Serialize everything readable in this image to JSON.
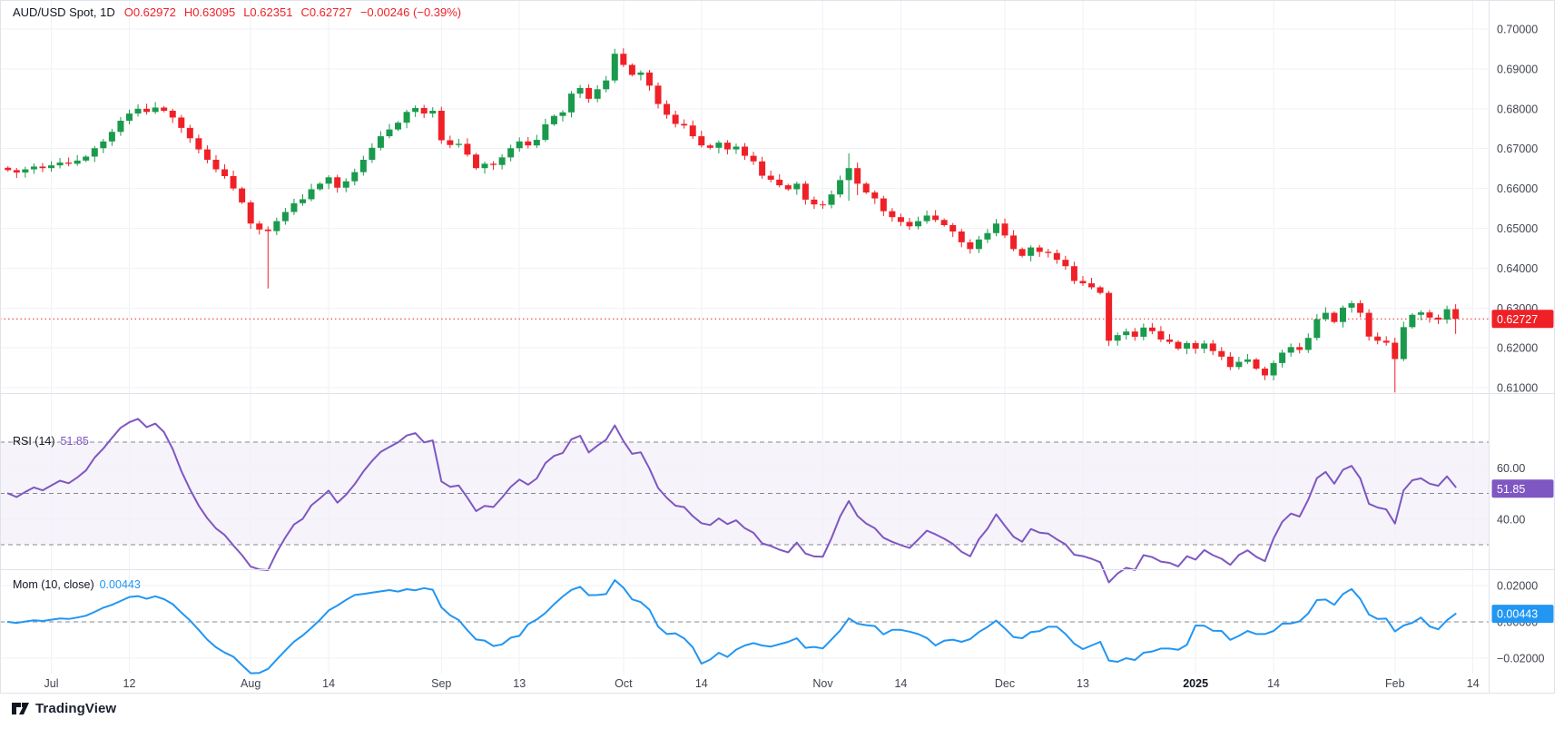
{
  "header": {
    "symbol": "AUD/USD Spot, 1D",
    "open": "O0.62972",
    "high": "H0.63095",
    "low": "L0.62351",
    "close": "C0.62727",
    "change": "−0.00246 (−0.39%)"
  },
  "colors": {
    "up": "#1a9a4c",
    "down": "#ef2127",
    "rsi": "#7e57c2",
    "mom": "#2196f3",
    "grid": "#f0f2f6",
    "border": "#e0e3eb",
    "axis_text": "#40444f",
    "dashed": "#73767f",
    "band_fill": "rgba(126,87,194,0.07)"
  },
  "price_pane": {
    "y_tick_labels": [
      "0.70000",
      "0.69000",
      "0.68000",
      "0.67000",
      "0.66000",
      "0.65000",
      "0.64000",
      "0.63000",
      "0.62000",
      "0.61000"
    ],
    "y_tick_values": [
      0.7,
      0.69,
      0.68,
      0.67,
      0.66,
      0.65,
      0.64,
      0.63,
      0.62,
      0.61
    ],
    "current_price_label": "0.62727",
    "current_price": 0.62727
  },
  "rsi_pane": {
    "name": "RSI (14)",
    "value_label": "51.85",
    "value": 51.85,
    "period": 14,
    "levels": [
      70,
      50,
      30
    ],
    "band": [
      30,
      70
    ],
    "y_tick_labels": [
      "60.00",
      "40.00"
    ],
    "y_tick_values": [
      60,
      40
    ]
  },
  "mom_pane": {
    "name": "Mom (10, close)",
    "value_label": "0.00443",
    "value": 0.00443,
    "period": 10,
    "y_tick_labels": [
      "0.02000",
      "0.00000",
      "−0.02000"
    ],
    "y_tick_values": [
      0.02,
      0,
      -0.02
    ],
    "zero_level": 0
  },
  "x_axis": {
    "ticks": [
      {
        "label": "Jul",
        "i": 5
      },
      {
        "label": "12",
        "i": 14
      },
      {
        "label": "Aug",
        "i": 28
      },
      {
        "label": "14",
        "i": 37
      },
      {
        "label": "Sep",
        "i": 50
      },
      {
        "label": "13",
        "i": 59
      },
      {
        "label": "Oct",
        "i": 71
      },
      {
        "label": "14",
        "i": 80
      },
      {
        "label": "Nov",
        "i": 94
      },
      {
        "label": "14",
        "i": 103
      },
      {
        "label": "Dec",
        "i": 115
      },
      {
        "label": "13",
        "i": 124
      },
      {
        "label": "2025",
        "i": 137,
        "bold": true
      },
      {
        "label": "14",
        "i": 146
      },
      {
        "label": "Feb",
        "i": 160
      },
      {
        "label": "14",
        "i": 169
      }
    ]
  },
  "logo_text": "TradingView",
  "chart_data": {
    "type": "candlestick",
    "title": "AUD/USD Spot, 1D",
    "ylim": [
      0.6087,
      0.7073
    ],
    "grid": true,
    "legend_position": "top-left",
    "first_open": 0.6652,
    "closes": [
      0.6646,
      0.664,
      0.6648,
      0.6655,
      0.6651,
      0.6658,
      0.6665,
      0.6662,
      0.667,
      0.668,
      0.6701,
      0.6718,
      0.6742,
      0.677,
      0.6788,
      0.68,
      0.6792,
      0.6803,
      0.6795,
      0.6778,
      0.6752,
      0.6726,
      0.6698,
      0.6672,
      0.6648,
      0.6631,
      0.66,
      0.6565,
      0.6512,
      0.6497,
      0.6493,
      0.6518,
      0.6541,
      0.6563,
      0.6573,
      0.6598,
      0.6612,
      0.6628,
      0.6602,
      0.6618,
      0.6641,
      0.6672,
      0.6702,
      0.6731,
      0.6748,
      0.6765,
      0.6792,
      0.6802,
      0.6788,
      0.6795,
      0.6721,
      0.6709,
      0.6712,
      0.6685,
      0.6651,
      0.6662,
      0.6659,
      0.6678,
      0.6701,
      0.6718,
      0.6708,
      0.6722,
      0.6761,
      0.6782,
      0.6791,
      0.6838,
      0.6852,
      0.6825,
      0.6849,
      0.6871,
      0.6938,
      0.691,
      0.6885,
      0.6891,
      0.6858,
      0.6812,
      0.6785,
      0.6762,
      0.6758,
      0.6731,
      0.6708,
      0.6702,
      0.6715,
      0.6698,
      0.6705,
      0.6682,
      0.6668,
      0.6632,
      0.6622,
      0.6608,
      0.6598,
      0.6612,
      0.6572,
      0.656,
      0.6559,
      0.6585,
      0.6621,
      0.6651,
      0.6612,
      0.659,
      0.6575,
      0.6543,
      0.6528,
      0.6516,
      0.6505,
      0.6518,
      0.6532,
      0.6521,
      0.6508,
      0.6492,
      0.6465,
      0.6448,
      0.6472,
      0.6488,
      0.6512,
      0.6482,
      0.6448,
      0.6431,
      0.6452,
      0.6441,
      0.6438,
      0.6421,
      0.6405,
      0.6368,
      0.6362,
      0.6352,
      0.6338,
      0.6218,
      0.6232,
      0.6241,
      0.6228,
      0.6251,
      0.6242,
      0.6221,
      0.6215,
      0.6198,
      0.6212,
      0.6198,
      0.6211,
      0.6192,
      0.6178,
      0.6152,
      0.6165,
      0.6171,
      0.6148,
      0.6131,
      0.6162,
      0.6188,
      0.6202,
      0.6195,
      0.6225,
      0.6272,
      0.6288,
      0.6265,
      0.6301,
      0.6312,
      0.6288,
      0.62284,
      0.6218,
      0.6213,
      0.6172,
      0.6252,
      0.6283,
      0.6289,
      0.6276,
      0.6271,
      0.6297,
      0.62727
    ],
    "wick_overrides": {
      "30": {
        "l": 0.6349
      },
      "97": {
        "h": 0.6688,
        "l": 0.6569
      },
      "98": {
        "l": 0.6583
      },
      "127": {
        "l": 0.6205
      },
      "145": {
        "l": 0.6119
      },
      "160": {
        "l": 0.6088
      },
      "167": {
        "o": 0.62972,
        "h": 0.63095,
        "l": 0.62351,
        "c": 0.62727
      }
    }
  }
}
